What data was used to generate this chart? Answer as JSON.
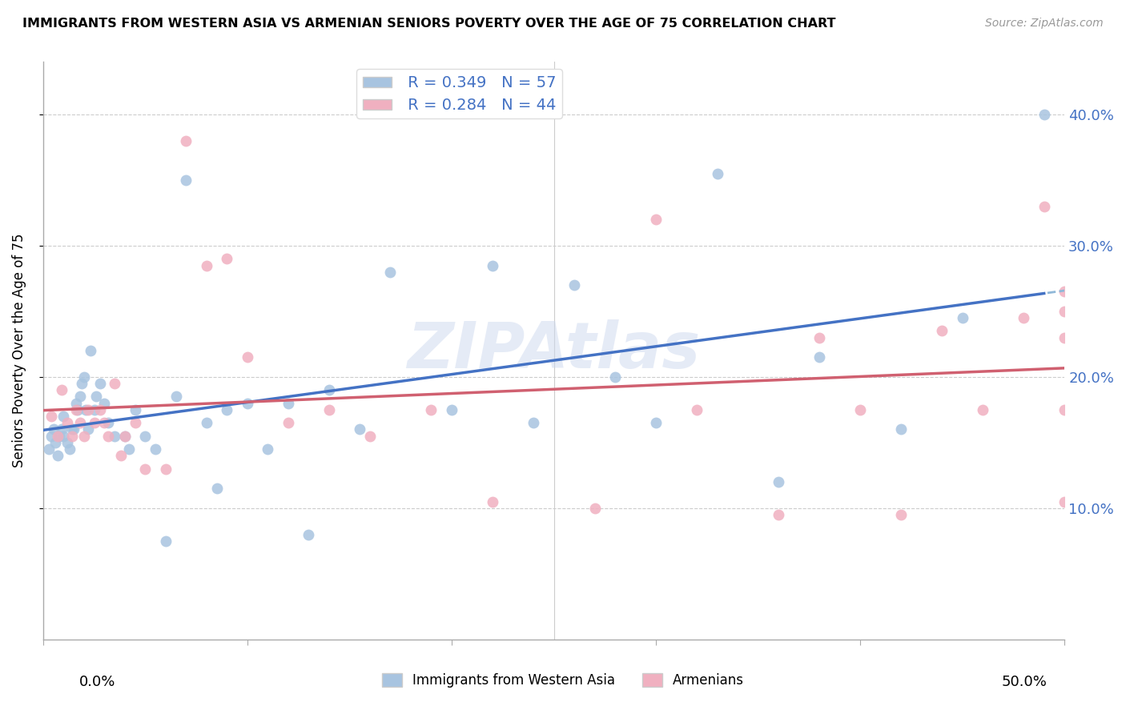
{
  "title": "IMMIGRANTS FROM WESTERN ASIA VS ARMENIAN SENIORS POVERTY OVER THE AGE OF 75 CORRELATION CHART",
  "source": "Source: ZipAtlas.com",
  "ylabel": "Seniors Poverty Over the Age of 75",
  "xlim": [
    0.0,
    0.5
  ],
  "ylim": [
    0.0,
    0.44
  ],
  "yticks": [
    0.1,
    0.2,
    0.3,
    0.4
  ],
  "ytick_labels": [
    "10.0%",
    "20.0%",
    "30.0%",
    "40.0%"
  ],
  "xticks": [
    0.0,
    0.1,
    0.2,
    0.3,
    0.4,
    0.5
  ],
  "r_blue": 0.349,
  "n_blue": 57,
  "r_pink": 0.284,
  "n_pink": 44,
  "blue_scatter_color": "#a8c4e0",
  "pink_scatter_color": "#f0b0c0",
  "line_blue_solid": "#4472c4",
  "line_pink_solid": "#d06070",
  "line_blue_dashed": "#90b8d8",
  "watermark": "ZIPAtlas",
  "legend_label_blue": "Immigrants from Western Asia",
  "legend_label_pink": "Armenians",
  "blue_x": [
    0.003,
    0.004,
    0.005,
    0.006,
    0.007,
    0.008,
    0.009,
    0.01,
    0.01,
    0.012,
    0.013,
    0.014,
    0.015,
    0.016,
    0.017,
    0.018,
    0.019,
    0.02,
    0.021,
    0.022,
    0.023,
    0.025,
    0.026,
    0.028,
    0.03,
    0.032,
    0.035,
    0.04,
    0.042,
    0.045,
    0.05,
    0.055,
    0.06,
    0.065,
    0.07,
    0.08,
    0.085,
    0.09,
    0.1,
    0.11,
    0.12,
    0.13,
    0.14,
    0.155,
    0.17,
    0.2,
    0.22,
    0.24,
    0.26,
    0.28,
    0.3,
    0.33,
    0.36,
    0.38,
    0.42,
    0.45,
    0.49
  ],
  "blue_y": [
    0.145,
    0.155,
    0.16,
    0.15,
    0.14,
    0.155,
    0.16,
    0.155,
    0.17,
    0.15,
    0.145,
    0.16,
    0.16,
    0.18,
    0.175,
    0.185,
    0.195,
    0.2,
    0.175,
    0.16,
    0.22,
    0.175,
    0.185,
    0.195,
    0.18,
    0.165,
    0.155,
    0.155,
    0.145,
    0.175,
    0.155,
    0.145,
    0.075,
    0.185,
    0.35,
    0.165,
    0.115,
    0.175,
    0.18,
    0.145,
    0.18,
    0.08,
    0.19,
    0.16,
    0.28,
    0.175,
    0.285,
    0.165,
    0.27,
    0.2,
    0.165,
    0.355,
    0.12,
    0.215,
    0.16,
    0.245,
    0.4
  ],
  "pink_x": [
    0.004,
    0.007,
    0.009,
    0.012,
    0.014,
    0.016,
    0.018,
    0.02,
    0.022,
    0.025,
    0.028,
    0.03,
    0.032,
    0.035,
    0.038,
    0.04,
    0.045,
    0.05,
    0.06,
    0.07,
    0.08,
    0.09,
    0.1,
    0.12,
    0.14,
    0.16,
    0.19,
    0.22,
    0.27,
    0.3,
    0.32,
    0.36,
    0.38,
    0.4,
    0.42,
    0.44,
    0.46,
    0.48,
    0.49,
    0.5,
    0.5,
    0.5,
    0.5,
    0.5
  ],
  "pink_y": [
    0.17,
    0.155,
    0.19,
    0.165,
    0.155,
    0.175,
    0.165,
    0.155,
    0.175,
    0.165,
    0.175,
    0.165,
    0.155,
    0.195,
    0.14,
    0.155,
    0.165,
    0.13,
    0.13,
    0.38,
    0.285,
    0.29,
    0.215,
    0.165,
    0.175,
    0.155,
    0.175,
    0.105,
    0.1,
    0.32,
    0.175,
    0.095,
    0.23,
    0.175,
    0.095,
    0.235,
    0.175,
    0.245,
    0.33,
    0.25,
    0.175,
    0.105,
    0.23,
    0.265
  ]
}
